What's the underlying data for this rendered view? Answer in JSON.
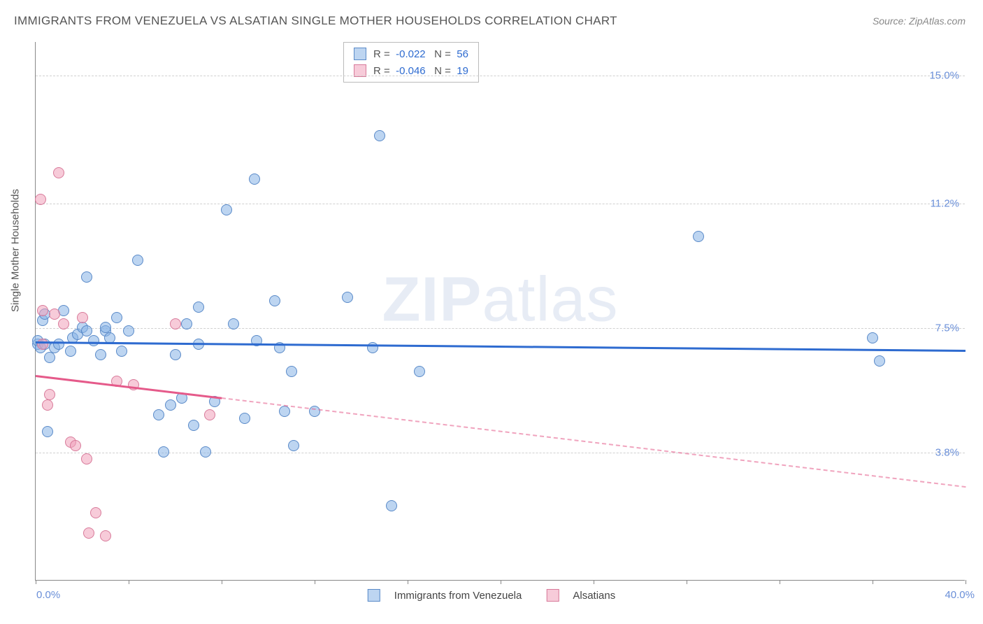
{
  "title": "IMMIGRANTS FROM VENEZUELA VS ALSATIAN SINGLE MOTHER HOUSEHOLDS CORRELATION CHART",
  "source": "Source: ZipAtlas.com",
  "y_axis_label": "Single Mother Households",
  "watermark_prefix": "ZIP",
  "watermark_suffix": "atlas",
  "chart": {
    "type": "scatter",
    "xlim": [
      0.0,
      40.0
    ],
    "ylim": [
      0.0,
      16.0
    ],
    "y_gridlines": [
      3.8,
      7.5,
      11.2,
      15.0
    ],
    "y_tick_labels": [
      "3.8%",
      "7.5%",
      "11.2%",
      "15.0%"
    ],
    "x_min_label": "0.0%",
    "x_max_label": "40.0%",
    "x_ticks": [
      0,
      4,
      8,
      12,
      16,
      20,
      24,
      28,
      32,
      36,
      40
    ],
    "marker_radius": 8,
    "background_color": "#ffffff",
    "grid_color": "#d0d0d0",
    "axis_color": "#888888",
    "text_color": "#555555",
    "tick_label_color": "#6a8fd8",
    "series": [
      {
        "name": "Immigrants from Venezuela",
        "fill": "rgba(135, 178, 230, 0.55)",
        "stroke": "#5a8ac8",
        "line_color": "#2e6bd0",
        "r": "-0.022",
        "n": "56",
        "trend": {
          "y_at_x0": 7.1,
          "y_at_xmax": 6.85,
          "solid_until_x": 40.0
        },
        "points": [
          [
            0.1,
            7.0
          ],
          [
            0.1,
            7.1
          ],
          [
            0.2,
            6.9
          ],
          [
            0.3,
            7.7
          ],
          [
            0.4,
            7.9
          ],
          [
            0.4,
            7.0
          ],
          [
            0.5,
            4.4
          ],
          [
            0.6,
            6.6
          ],
          [
            0.8,
            6.9
          ],
          [
            1.0,
            7.0
          ],
          [
            1.2,
            8.0
          ],
          [
            1.5,
            6.8
          ],
          [
            1.6,
            7.2
          ],
          [
            1.8,
            7.3
          ],
          [
            2.0,
            7.5
          ],
          [
            2.2,
            7.4
          ],
          [
            2.2,
            9.0
          ],
          [
            2.5,
            7.1
          ],
          [
            2.8,
            6.7
          ],
          [
            3.0,
            7.4
          ],
          [
            3.0,
            7.5
          ],
          [
            3.2,
            7.2
          ],
          [
            3.5,
            7.8
          ],
          [
            3.7,
            6.8
          ],
          [
            4.0,
            7.4
          ],
          [
            4.4,
            9.5
          ],
          [
            5.3,
            4.9
          ],
          [
            5.5,
            3.8
          ],
          [
            5.8,
            5.2
          ],
          [
            6.0,
            6.7
          ],
          [
            6.3,
            5.4
          ],
          [
            6.5,
            7.6
          ],
          [
            6.8,
            4.6
          ],
          [
            7.0,
            7.0
          ],
          [
            7.0,
            8.1
          ],
          [
            7.3,
            3.8
          ],
          [
            7.7,
            5.3
          ],
          [
            8.2,
            11.0
          ],
          [
            8.5,
            7.6
          ],
          [
            9.0,
            4.8
          ],
          [
            9.4,
            11.9
          ],
          [
            9.5,
            7.1
          ],
          [
            10.3,
            8.3
          ],
          [
            10.5,
            6.9
          ],
          [
            10.7,
            5.0
          ],
          [
            11.0,
            6.2
          ],
          [
            11.1,
            4.0
          ],
          [
            12.0,
            5.0
          ],
          [
            13.4,
            8.4
          ],
          [
            14.5,
            6.9
          ],
          [
            14.8,
            13.2
          ],
          [
            15.3,
            2.2
          ],
          [
            16.5,
            6.2
          ],
          [
            28.5,
            10.2
          ],
          [
            36.0,
            7.2
          ],
          [
            36.3,
            6.5
          ]
        ]
      },
      {
        "name": "Alsatians",
        "fill": "rgba(240, 160, 185, 0.55)",
        "stroke": "#d87a9a",
        "line_color": "#e55a8a",
        "r": "-0.046",
        "n": "19",
        "trend": {
          "y_at_x0": 6.1,
          "y_at_xmax": 2.8,
          "solid_until_x": 8.0
        },
        "points": [
          [
            0.2,
            11.3
          ],
          [
            0.3,
            7.0
          ],
          [
            0.3,
            8.0
          ],
          [
            0.5,
            5.2
          ],
          [
            0.6,
            5.5
          ],
          [
            0.8,
            7.9
          ],
          [
            1.0,
            12.1
          ],
          [
            1.2,
            7.6
          ],
          [
            1.5,
            4.1
          ],
          [
            1.7,
            4.0
          ],
          [
            2.0,
            7.8
          ],
          [
            2.2,
            3.6
          ],
          [
            2.3,
            1.4
          ],
          [
            2.6,
            2.0
          ],
          [
            3.0,
            1.3
          ],
          [
            3.5,
            5.9
          ],
          [
            4.2,
            5.8
          ],
          [
            6.0,
            7.6
          ],
          [
            7.5,
            4.9
          ]
        ]
      }
    ]
  },
  "bottom_legend": {
    "series1_label": "Immigrants from Venezuela",
    "series2_label": "Alsatians"
  }
}
